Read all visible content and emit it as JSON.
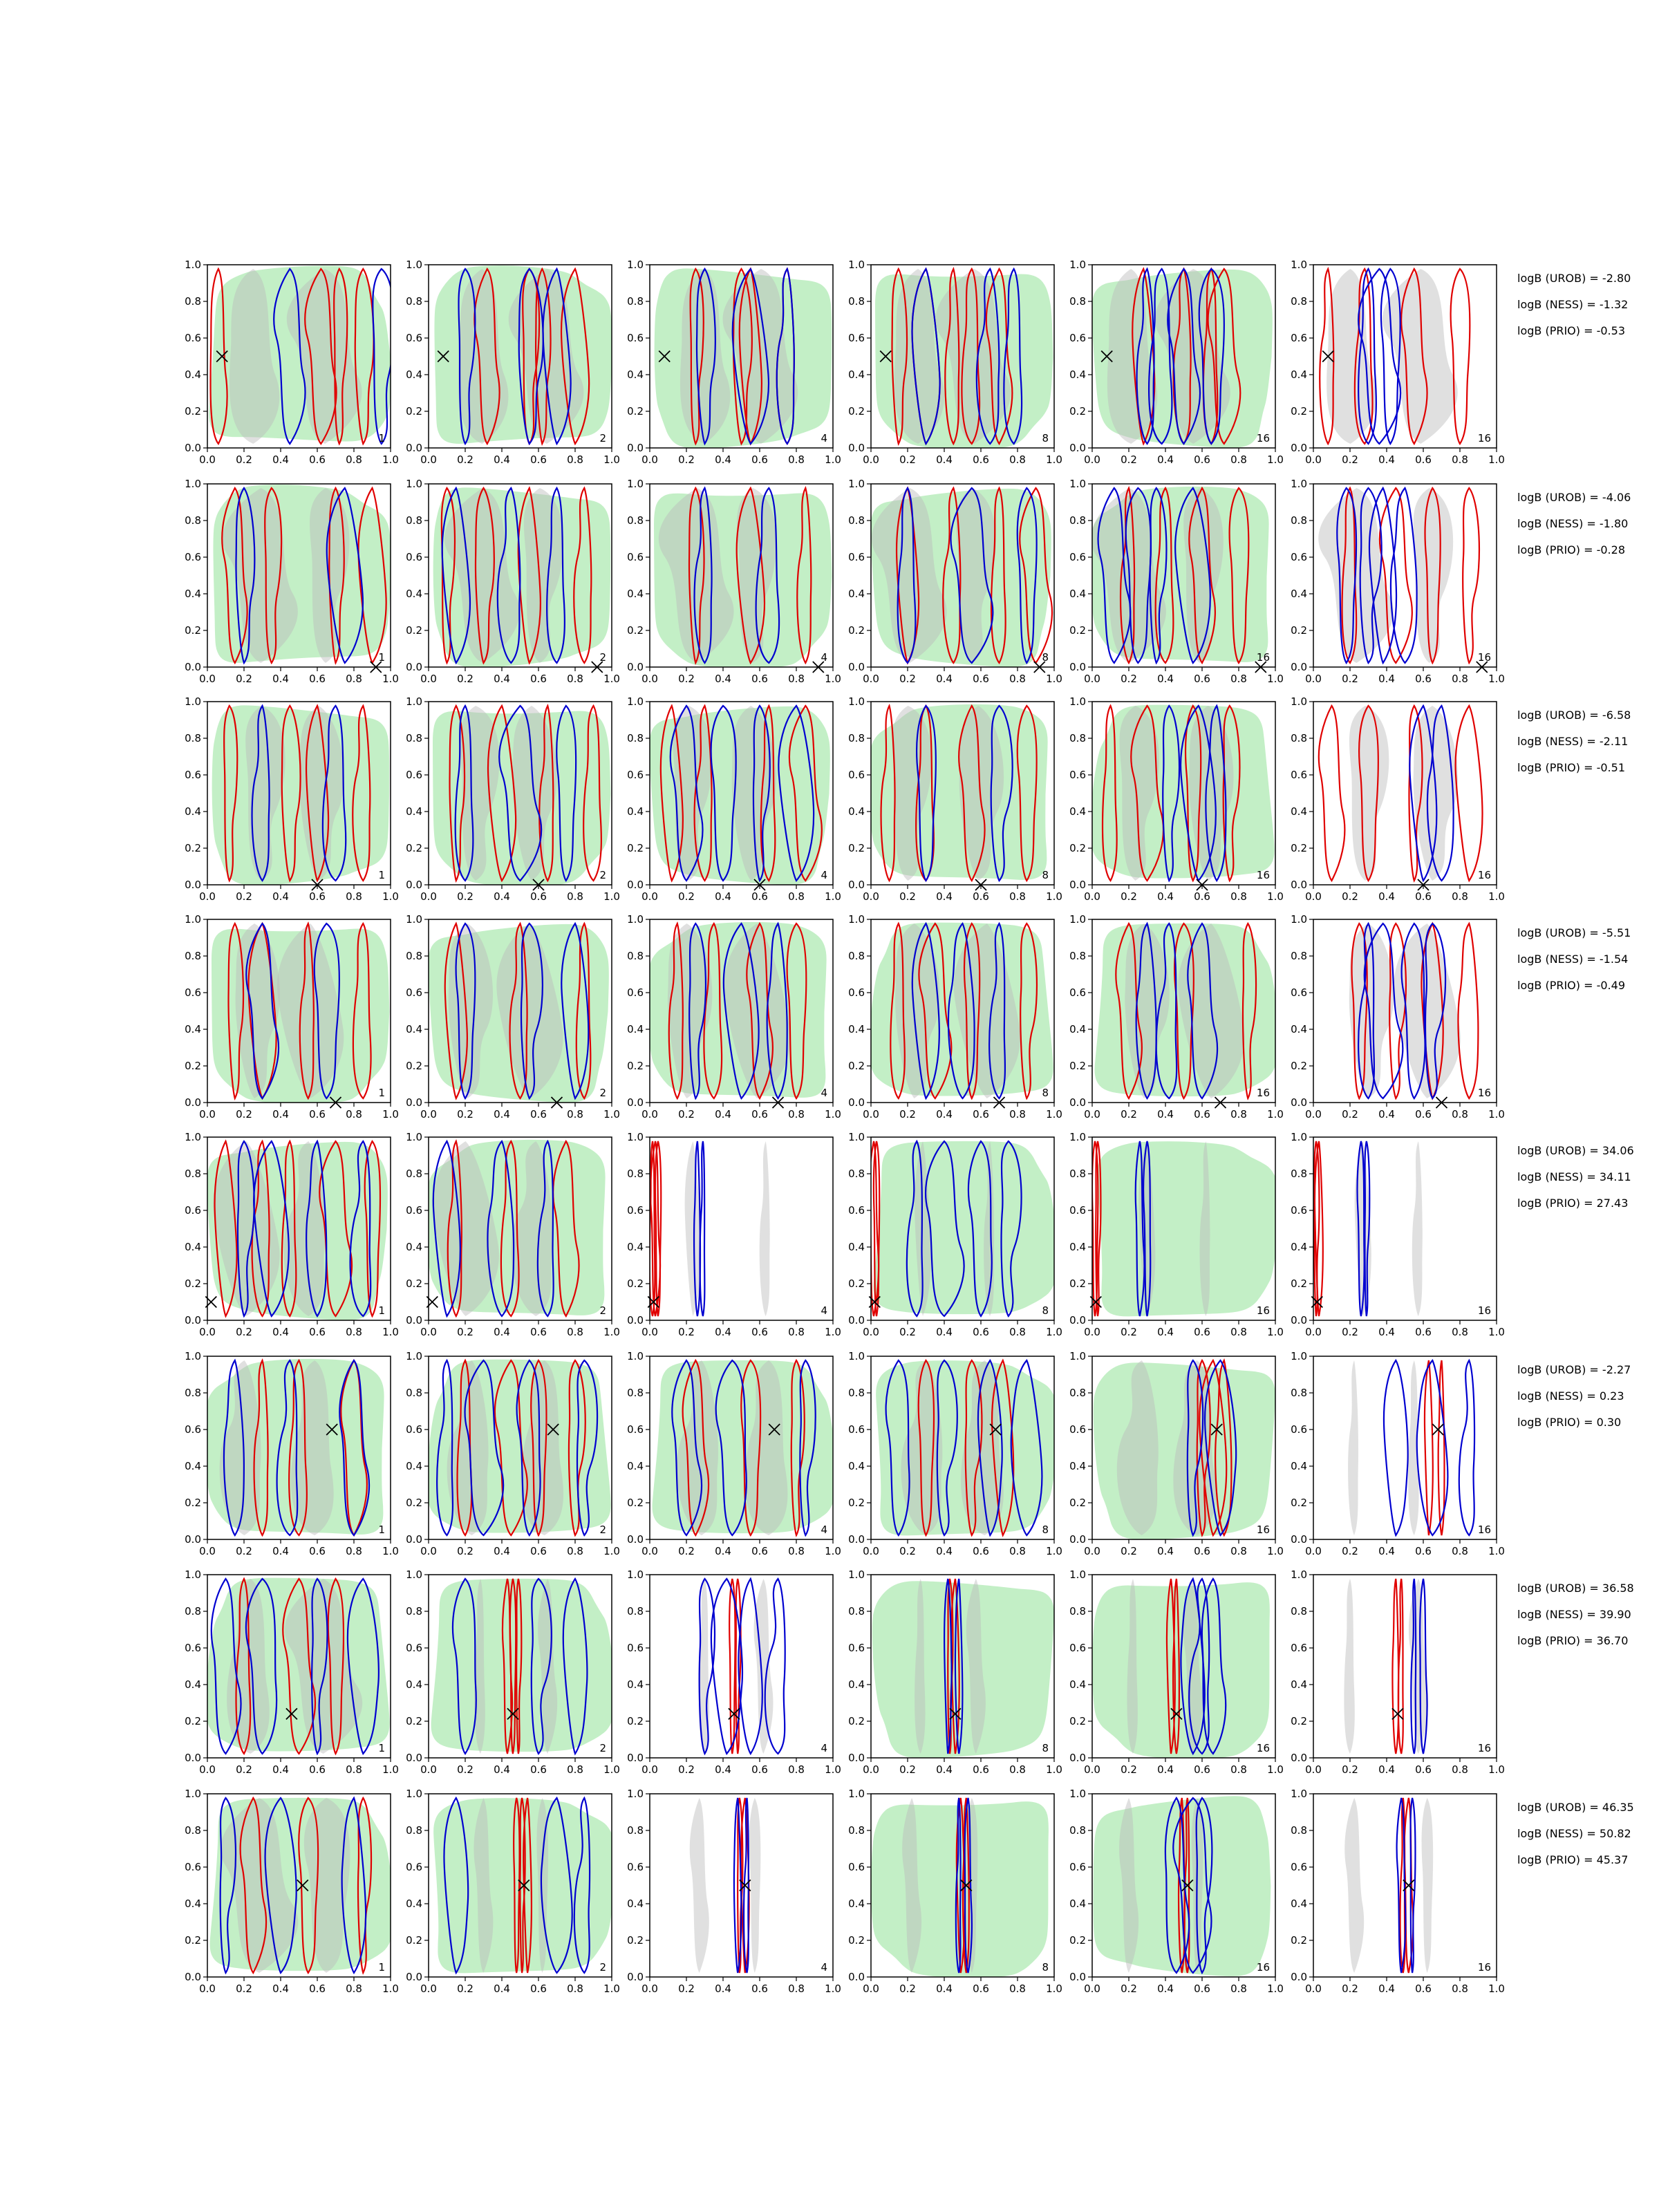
{
  "chart_data": {
    "type": "contour",
    "grid": {
      "rows": 8,
      "cols": 6
    },
    "axis": {
      "xlim": [
        0,
        1
      ],
      "ylim": [
        0,
        1
      ],
      "ticks": [
        "0.0",
        "0.2",
        "0.4",
        "0.6",
        "0.8",
        "1.0"
      ]
    },
    "panel_labels": [
      "1",
      "2",
      "4",
      "8",
      "16",
      "16"
    ],
    "colors": {
      "red": "#e00000",
      "blue": "#0000d0",
      "green": "#b8ecbc",
      "gray": "#bbbbbb"
    },
    "rows": [
      {
        "marker": [
          0.08,
          0.5
        ],
        "stats": [
          "logB (UROB) = -2.80",
          "logB (NESS) = -1.32",
          "logB (PRIO) = -0.53"
        ],
        "red_x": [
          [
            0.06,
            0.62,
            0.72,
            0.85
          ],
          [
            0.32,
            0.55,
            0.62,
            0.8
          ],
          [
            0.25,
            0.5,
            0.55,
            0.75
          ],
          [
            0.15,
            0.3,
            0.45,
            0.55,
            0.7
          ],
          [
            0.28,
            0.5,
            0.65,
            0.72
          ],
          [
            0.08,
            0.28,
            0.55,
            0.8
          ]
        ],
        "blue_x": [
          [
            0.45,
            0.95
          ],
          [
            0.2,
            0.55,
            0.7
          ],
          [
            0.3,
            0.55,
            0.75
          ],
          [
            0.3,
            0.65,
            0.78
          ],
          [
            0.3,
            0.38,
            0.5,
            0.65
          ],
          [
            0.3,
            0.36,
            0.42
          ]
        ]
      },
      {
        "marker": [
          0.92,
          0.0
        ],
        "stats": [
          "logB (UROB) = -4.06",
          "logB (NESS) = -1.80",
          "logB (PRIO) = -0.28"
        ],
        "red_x": [
          [
            0.15,
            0.35,
            0.7,
            0.9
          ],
          [
            0.1,
            0.3,
            0.55,
            0.85
          ],
          [
            0.25,
            0.55,
            0.85
          ],
          [
            0.2,
            0.45,
            0.7,
            0.9
          ],
          [
            0.2,
            0.4,
            0.6,
            0.8
          ],
          [
            0.2,
            0.45,
            0.65,
            0.85
          ]
        ],
        "blue_x": [
          [
            0.2,
            0.75
          ],
          [
            0.15,
            0.45,
            0.7
          ],
          [
            0.3,
            0.65
          ],
          [
            0.2,
            0.55,
            0.85
          ],
          [
            0.12,
            0.25,
            0.35,
            0.55
          ],
          [
            0.18,
            0.3,
            0.38,
            0.5
          ]
        ]
      },
      {
        "marker": [
          0.6,
          0.0
        ],
        "stats": [
          "logB (UROB) = -6.58",
          "logB (NESS) = -2.11",
          "logB (PRIO) = -0.51"
        ],
        "red_x": [
          [
            0.12,
            0.45,
            0.6,
            0.85
          ],
          [
            0.15,
            0.4,
            0.65,
            0.9
          ],
          [
            0.12,
            0.3,
            0.65,
            0.85
          ],
          [
            0.1,
            0.3,
            0.55,
            0.85
          ],
          [
            0.1,
            0.3,
            0.55,
            0.75
          ],
          [
            0.1,
            0.3,
            0.55,
            0.85
          ]
        ],
        "blue_x": [
          [
            0.3,
            0.7
          ],
          [
            0.2,
            0.5,
            0.75
          ],
          [
            0.2,
            0.4,
            0.6,
            0.8
          ],
          [
            0.3,
            0.7
          ],
          [
            0.42,
            0.58,
            0.68
          ],
          [
            0.6,
            0.7
          ]
        ]
      },
      {
        "marker": [
          0.7,
          0.0
        ],
        "stats": [
          "logB (UROB) = -5.51",
          "logB (NESS) = -1.54",
          "logB (PRIO) = -0.49"
        ],
        "red_x": [
          [
            0.15,
            0.3,
            0.55,
            0.85
          ],
          [
            0.15,
            0.5,
            0.85
          ],
          [
            0.15,
            0.35,
            0.6,
            0.8
          ],
          [
            0.15,
            0.35,
            0.55,
            0.85
          ],
          [
            0.2,
            0.5,
            0.85
          ],
          [
            0.25,
            0.45,
            0.65,
            0.85
          ]
        ],
        "blue_x": [
          [
            0.3,
            0.65
          ],
          [
            0.2,
            0.55,
            0.8
          ],
          [
            0.25,
            0.5,
            0.7
          ],
          [
            0.3,
            0.5,
            0.7
          ],
          [
            0.3,
            0.42,
            0.6
          ],
          [
            0.3,
            0.38,
            0.55,
            0.65
          ]
        ]
      },
      {
        "marker": [
          0.02,
          0.1
        ],
        "stats": [
          "logB (UROB) = 34.06",
          "logB (NESS) = 34.11",
          "logB (PRIO) = 27.43"
        ],
        "red_x": [
          [
            0.1,
            0.3,
            0.45,
            0.7,
            0.9
          ],
          [
            0.15,
            0.45,
            0.75
          ],
          [
            0.015,
            0.03,
            0.045
          ],
          [
            0.015,
            0.03
          ],
          [
            0.015,
            0.03
          ],
          [
            0.015,
            0.03
          ]
        ],
        "blue_x": [
          [
            0.2,
            0.35,
            0.6,
            0.85
          ],
          [
            0.1,
            0.4,
            0.65
          ],
          [
            0.26,
            0.29
          ],
          [
            0.25,
            0.4,
            0.6,
            0.75
          ],
          [
            0.26,
            0.3
          ],
          [
            0.26,
            0.29
          ]
        ]
      },
      {
        "marker": [
          0.68,
          0.6
        ],
        "stats": [
          "logB (UROB) = -2.27",
          "logB (NESS) = 0.23",
          "logB (PRIO) = 0.30"
        ],
        "red_x": [
          [
            0.3,
            0.5,
            0.8
          ],
          [
            0.2,
            0.45,
            0.6,
            0.8
          ],
          [
            0.25,
            0.55,
            0.8
          ],
          [
            0.3,
            0.55,
            0.72
          ],
          [
            0.6,
            0.66,
            0.72
          ],
          [
            0.63,
            0.7
          ]
        ],
        "blue_x": [
          [
            0.15,
            0.45,
            0.8
          ],
          [
            0.1,
            0.3,
            0.55,
            0.85
          ],
          [
            0.2,
            0.45,
            0.85
          ],
          [
            0.15,
            0.4,
            0.65,
            0.85
          ],
          [
            0.55,
            0.7
          ],
          [
            0.45,
            0.65,
            0.85
          ]
        ]
      },
      {
        "marker": [
          0.46,
          0.24
        ],
        "stats": [
          "logB (UROB) = 36.58",
          "logB (NESS) = 39.90",
          "logB (PRIO) = 36.70"
        ],
        "red_x": [
          [
            0.2,
            0.5,
            0.7
          ],
          [
            0.43,
            0.46,
            0.49
          ],
          [
            0.45,
            0.48
          ],
          [
            0.43,
            0.46
          ],
          [
            0.43,
            0.46
          ],
          [
            0.45,
            0.48
          ]
        ],
        "blue_x": [
          [
            0.1,
            0.3,
            0.6,
            0.85
          ],
          [
            0.2,
            0.6,
            0.8
          ],
          [
            0.3,
            0.42,
            0.55,
            0.7
          ],
          [
            0.42,
            0.48
          ],
          [
            0.55,
            0.6,
            0.66
          ],
          [
            0.55,
            0.6
          ]
        ]
      },
      {
        "marker": [
          0.52,
          0.5
        ],
        "stats": [
          "logB (UROB) = 46.35",
          "logB (NESS) = 50.82",
          "logB (PRIO) = 45.37"
        ],
        "red_x": [
          [
            0.25,
            0.55,
            0.85
          ],
          [
            0.48,
            0.51,
            0.54
          ],
          [
            0.49,
            0.52
          ],
          [
            0.49,
            0.52
          ],
          [
            0.49,
            0.52
          ],
          [
            0.49,
            0.52
          ]
        ],
        "blue_x": [
          [
            0.1,
            0.4,
            0.8
          ],
          [
            0.15,
            0.7,
            0.85
          ],
          [
            0.48,
            0.53
          ],
          [
            0.48,
            0.53
          ],
          [
            0.46,
            0.55,
            0.6
          ],
          [
            0.48,
            0.54
          ]
        ]
      }
    ]
  }
}
